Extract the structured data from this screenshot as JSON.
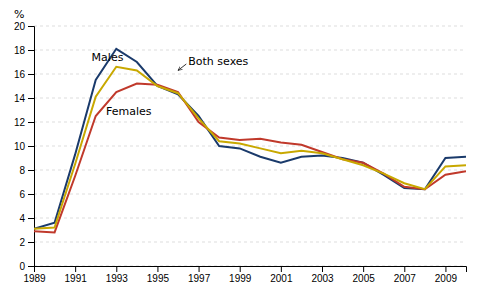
{
  "chart_data": {
    "type": "line",
    "y_label": "%",
    "x": [
      1989,
      1990,
      1991,
      1992,
      1993,
      1994,
      1995,
      1996,
      1997,
      1998,
      1999,
      2000,
      2001,
      2002,
      2003,
      2004,
      2005,
      2006,
      2007,
      2008,
      2009,
      2010
    ],
    "series": [
      {
        "name": "Males",
        "color": "#1a3a6b",
        "values": [
          3.1,
          3.6,
          9.3,
          15.5,
          18.1,
          17.0,
          15.0,
          14.3,
          12.5,
          10.0,
          9.8,
          9.1,
          8.6,
          9.1,
          9.2,
          9.0,
          8.6,
          7.6,
          6.5,
          6.4,
          9.0,
          9.1
        ]
      },
      {
        "name": "Females",
        "color": "#c0392b",
        "values": [
          2.9,
          2.8,
          7.5,
          12.5,
          14.5,
          15.2,
          15.1,
          14.5,
          12.0,
          10.7,
          10.5,
          10.6,
          10.3,
          10.1,
          9.5,
          8.9,
          8.6,
          7.7,
          6.6,
          6.4,
          7.6,
          7.9
        ]
      },
      {
        "name": "Both sexes",
        "color": "#c8a800",
        "values": [
          3.1,
          3.2,
          8.5,
          14.1,
          16.6,
          16.3,
          15.0,
          14.4,
          12.3,
          10.4,
          10.2,
          9.8,
          9.4,
          9.6,
          9.4,
          8.9,
          8.4,
          7.7,
          6.9,
          6.4,
          8.3,
          8.4
        ]
      }
    ],
    "annotations": [
      {
        "text": "Males",
        "x": 1991.8,
        "y": 17.3
      },
      {
        "text": "Females",
        "x": 1992.5,
        "y": 12.8
      },
      {
        "text": "Both sexes",
        "x": 1996.5,
        "y": 17.0,
        "arrow_x": 1996.0,
        "arrow_y": 16.3
      }
    ],
    "xlim": [
      1989,
      2010
    ],
    "xticks": [
      1989,
      1991,
      1993,
      1995,
      1997,
      1999,
      2001,
      2003,
      2005,
      2007,
      2009
    ],
    "ylim": [
      0,
      20
    ],
    "yticks": [
      0,
      2,
      4,
      6,
      8,
      10,
      12,
      14,
      16,
      18,
      20
    ],
    "grid": true
  }
}
